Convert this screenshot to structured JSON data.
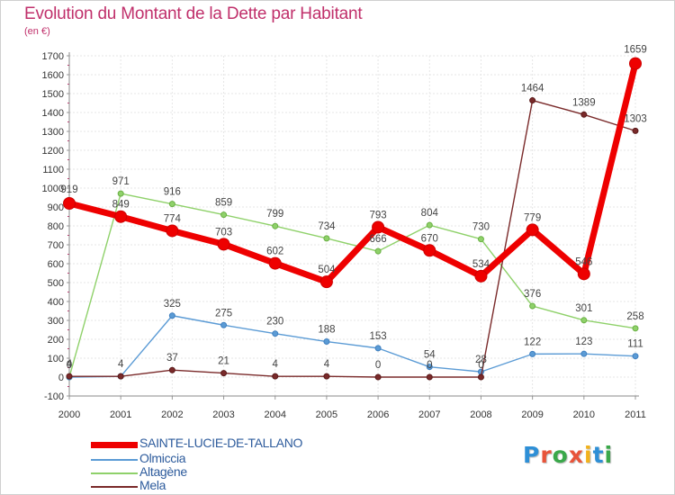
{
  "header": {
    "title": "Evolution du Montant de la Dette par Habitant",
    "subtitle": "(en €)"
  },
  "logo": {
    "text": "Proxiti",
    "colors": [
      "#2e8fd6",
      "#e8543a",
      "#3aa84a",
      "#e8543a",
      "#f2b21c",
      "#2e8fd6",
      "#3aa84a"
    ]
  },
  "chart_data": {
    "type": "line",
    "x": [
      "2000",
      "2001",
      "2002",
      "2003",
      "2004",
      "2005",
      "2006",
      "2007",
      "2008",
      "2009",
      "2010",
      "2011"
    ],
    "ylim": [
      -100,
      1700
    ],
    "yticks": [
      -100,
      0,
      100,
      200,
      300,
      400,
      500,
      600,
      700,
      800,
      900,
      1000,
      1100,
      1200,
      1300,
      1400,
      1500,
      1600,
      1700
    ],
    "grid": true,
    "legend_position": "bottom-left",
    "series": [
      {
        "name": "SAINTE-LUCIE-DE-TALLANO",
        "color": "#ee0000",
        "values": [
          919,
          849,
          774,
          703,
          602,
          504,
          793,
          670,
          534,
          779,
          546,
          1659
        ]
      },
      {
        "name": "Olmiccia",
        "color": "#5b9bd5",
        "values": [
          0,
          4,
          325,
          275,
          230,
          188,
          153,
          54,
          28,
          122,
          123,
          111
        ]
      },
      {
        "name": "Altagène",
        "color": "#8fd16a",
        "values": [
          0,
          971,
          916,
          859,
          799,
          734,
          666,
          804,
          730,
          376,
          301,
          258
        ]
      },
      {
        "name": "Mela",
        "color": "#7a2a2a",
        "values": [
          4,
          4,
          37,
          21,
          4,
          4,
          0,
          0,
          0,
          1464,
          1389,
          1303
        ]
      }
    ],
    "data_labels": {
      "SAINTE-LUCIE-DE-TALLANO": [
        "919",
        "849",
        "774",
        "703",
        "602",
        "504",
        "793",
        "670",
        "534",
        "779",
        "546",
        "1659"
      ],
      "Olmiccia": [
        "0",
        "4",
        "325",
        "275",
        "230",
        "188",
        "153",
        "54",
        "28",
        "122",
        "123",
        "111"
      ],
      "Altagène": [
        "",
        "971",
        "916",
        "859",
        "799",
        "734",
        "666",
        "804",
        "730",
        "376",
        "301",
        "258"
      ],
      "Mela": [
        "4",
        "",
        "37",
        "21",
        "4",
        "4",
        "0",
        "0",
        "0",
        "1464",
        "1389",
        "1303"
      ]
    }
  }
}
